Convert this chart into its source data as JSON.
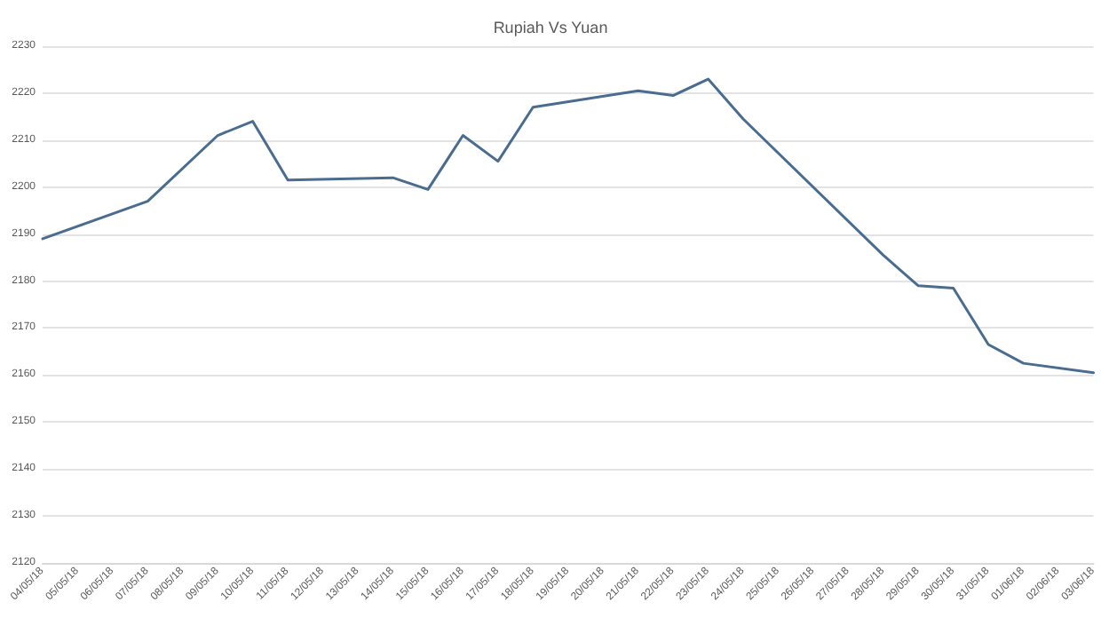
{
  "chart_data": {
    "type": "line",
    "title": "Rupiah Vs Yuan",
    "categories": [
      "04/05/18",
      "05/05/18",
      "06/05/18",
      "07/05/18",
      "08/05/18",
      "09/05/18",
      "10/05/18",
      "11/05/18",
      "12/05/18",
      "13/05/18",
      "14/05/18",
      "15/05/18",
      "16/05/18",
      "17/05/18",
      "18/05/18",
      "19/05/18",
      "20/05/18",
      "21/05/18",
      "22/05/18",
      "23/05/18",
      "24/05/18",
      "25/05/18",
      "26/05/18",
      "27/05/18",
      "28/05/18",
      "29/05/18",
      "30/05/18",
      "31/05/18",
      "01/06/18",
      "02/06/18",
      "03/06/18"
    ],
    "series": [
      {
        "color": "#4a6d8f",
        "values": [
          2189,
          null,
          null,
          2197,
          null,
          2211,
          2214,
          2201.5,
          null,
          null,
          2202,
          2199.5,
          2211,
          2205.5,
          2217,
          null,
          null,
          2220.5,
          2219.5,
          2223,
          2214.5,
          null,
          null,
          null,
          2185.5,
          2179,
          2178.5,
          2166.5,
          2162.5,
          null,
          2160.5
        ]
      }
    ],
    "ylim": [
      2120,
      2230
    ],
    "yticks": [
      2120,
      2130,
      2140,
      2150,
      2160,
      2170,
      2180,
      2190,
      2200,
      2210,
      2220,
      2230
    ],
    "grid": "y",
    "marker": "none",
    "line_style": "solid"
  }
}
